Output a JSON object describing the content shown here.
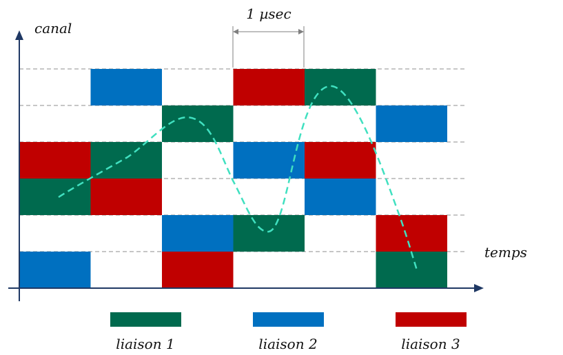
{
  "axes": {
    "y_label": "canal",
    "x_label": "temps"
  },
  "dimension": {
    "label": "1 µsec"
  },
  "grid": {
    "channels": 6,
    "slots": 6
  },
  "colors": {
    "liaison1": "#006a4e",
    "liaison2": "#0070c0",
    "liaison3": "#c00000",
    "curve": "#40e0c0",
    "axis": "#1f3864"
  },
  "legend": [
    {
      "key": "liaison1",
      "label": "liaison 1"
    },
    {
      "key": "liaison2",
      "label": "liaison 2"
    },
    {
      "key": "liaison3",
      "label": "liaison 3"
    }
  ],
  "cells": [
    {
      "slot": 0,
      "channel": 3,
      "link": "liaison3"
    },
    {
      "slot": 0,
      "channel": 2,
      "link": "liaison1"
    },
    {
      "slot": 0,
      "channel": 0,
      "link": "liaison2"
    },
    {
      "slot": 1,
      "channel": 5,
      "link": "liaison2"
    },
    {
      "slot": 1,
      "channel": 3,
      "link": "liaison1"
    },
    {
      "slot": 1,
      "channel": 2,
      "link": "liaison3"
    },
    {
      "slot": 2,
      "channel": 4,
      "link": "liaison1"
    },
    {
      "slot": 2,
      "channel": 1,
      "link": "liaison2"
    },
    {
      "slot": 2,
      "channel": 0,
      "link": "liaison3"
    },
    {
      "slot": 3,
      "channel": 5,
      "link": "liaison3"
    },
    {
      "slot": 3,
      "channel": 3,
      "link": "liaison2"
    },
    {
      "slot": 3,
      "channel": 1,
      "link": "liaison1"
    },
    {
      "slot": 4,
      "channel": 5,
      "link": "liaison1"
    },
    {
      "slot": 4,
      "channel": 3,
      "link": "liaison3"
    },
    {
      "slot": 4,
      "channel": 2,
      "link": "liaison2"
    },
    {
      "slot": 5,
      "channel": 4,
      "link": "liaison2"
    },
    {
      "slot": 5,
      "channel": 1,
      "link": "liaison3"
    },
    {
      "slot": 5,
      "channel": 0,
      "link": "liaison1"
    }
  ]
}
